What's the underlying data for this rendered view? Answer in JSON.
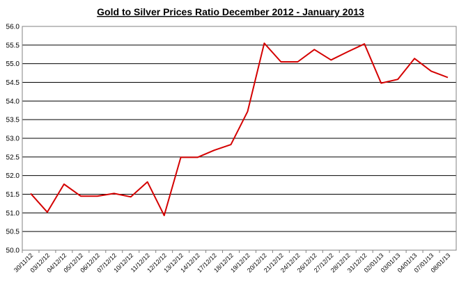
{
  "chart_data": {
    "type": "line",
    "title": "Gold to Silver Prices Ratio December 2012 - January 2013",
    "xlabel": "",
    "ylabel": "",
    "ylim": [
      50.0,
      56.0
    ],
    "yticks": [
      "50.0",
      "50.5",
      "51.0",
      "51.5",
      "52.0",
      "52.5",
      "53.0",
      "53.5",
      "54.0",
      "54.5",
      "55.0",
      "55.5",
      "56.0"
    ],
    "grid": "horizontal",
    "legend": "none",
    "colors": {
      "series": "#d40000",
      "grid": "#000000",
      "frame": "#808080"
    },
    "categories": [
      "30/11/12",
      "03/12/12",
      "04/12/12",
      "05/12/12",
      "06/12/12",
      "07/12/12",
      "10/12/12",
      "11/12/12",
      "12/12/12",
      "13/12/12",
      "14/12/12",
      "17/12/12",
      "18/12/12",
      "19/12/12",
      "20/12/12",
      "21/12/12",
      "24/12/12",
      "26/12/12",
      "27/12/12",
      "28/12/12",
      "31/12/12",
      "02/01/13",
      "03/01/13",
      "04/01/13",
      "07/01/13",
      "08/01/13"
    ],
    "values": [
      51.52,
      51.02,
      51.77,
      51.45,
      51.45,
      51.52,
      51.43,
      51.83,
      50.93,
      52.49,
      52.49,
      52.68,
      52.83,
      53.72,
      55.55,
      55.05,
      55.05,
      55.38,
      55.1,
      55.32,
      55.53,
      54.48,
      54.58,
      55.14,
      54.8,
      54.63
    ]
  }
}
